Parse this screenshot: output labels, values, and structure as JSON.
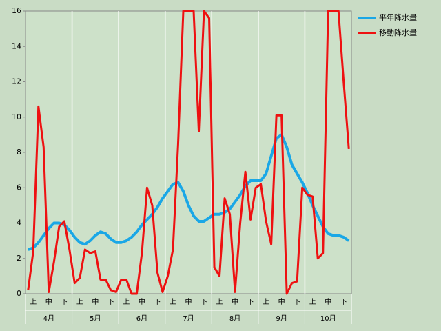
{
  "chart_data": {
    "type": "line",
    "categories": [
      null,
      "上",
      null,
      null,
      "中",
      null,
      null,
      "下",
      null,
      null,
      "上",
      null,
      null,
      "中",
      null,
      null,
      "下",
      null,
      null,
      "上",
      null,
      null,
      "中",
      null,
      null,
      "下",
      null,
      null,
      "上",
      null,
      null,
      "中",
      null,
      null,
      "下",
      null,
      null,
      "上",
      null,
      null,
      "中",
      null,
      null,
      "下",
      null,
      null,
      "上",
      null,
      null,
      "中",
      null,
      null,
      "下",
      null,
      null,
      "上",
      null,
      null,
      "中",
      null,
      null,
      "下",
      null
    ],
    "groups": [
      "4月",
      "5月",
      "6月",
      "7月",
      "8月",
      "9月",
      "10月"
    ],
    "series": [
      {
        "name": "平年降水量",
        "color": "#1aa7e6",
        "values": [
          2.5,
          2.6,
          2.9,
          3.3,
          3.7,
          4.0,
          4.0,
          3.9,
          3.6,
          3.2,
          2.9,
          2.8,
          3.0,
          3.3,
          3.5,
          3.4,
          3.1,
          2.9,
          2.9,
          3.0,
          3.2,
          3.5,
          3.9,
          4.2,
          4.5,
          4.9,
          5.4,
          5.8,
          6.2,
          6.3,
          5.8,
          5.0,
          4.4,
          4.1,
          4.1,
          4.3,
          4.5,
          4.5,
          4.6,
          4.8,
          5.2,
          5.6,
          6.1,
          6.4,
          6.4,
          6.4,
          6.8,
          7.8,
          8.8,
          9.0,
          8.3,
          7.3,
          6.8,
          6.3,
          5.7,
          5.0,
          4.4,
          3.8,
          3.4,
          3.3,
          3.3,
          3.2,
          3.0
        ]
      },
      {
        "name": "移動降水量",
        "color": "#ee1111",
        "values": [
          0.2,
          2.4,
          10.6,
          8.3,
          0.1,
          1.8,
          3.8,
          4.1,
          2.5,
          0.6,
          0.9,
          2.5,
          2.3,
          2.4,
          0.8,
          0.8,
          0.2,
          0.1,
          0.8,
          0.8,
          0,
          0,
          2.3,
          6.0,
          5.0,
          1.2,
          0.1,
          1.0,
          2.5,
          8.5,
          16,
          16,
          16,
          9.2,
          16,
          15.6,
          1.5,
          1.0,
          5.4,
          4.5,
          0.1,
          4.0,
          6.9,
          4.2,
          6.0,
          6.2,
          4.1,
          2.8,
          10.1,
          10.1,
          0,
          0.6,
          0.7,
          6.0,
          5.6,
          5.5,
          2.0,
          2.3,
          16,
          16,
          16,
          12.0,
          8.2
        ]
      }
    ],
    "ylim": [
      0,
      16
    ],
    "yticks": [
      0,
      2,
      4,
      6,
      8,
      10,
      12,
      14,
      16
    ],
    "grid": true,
    "legend": "right"
  }
}
